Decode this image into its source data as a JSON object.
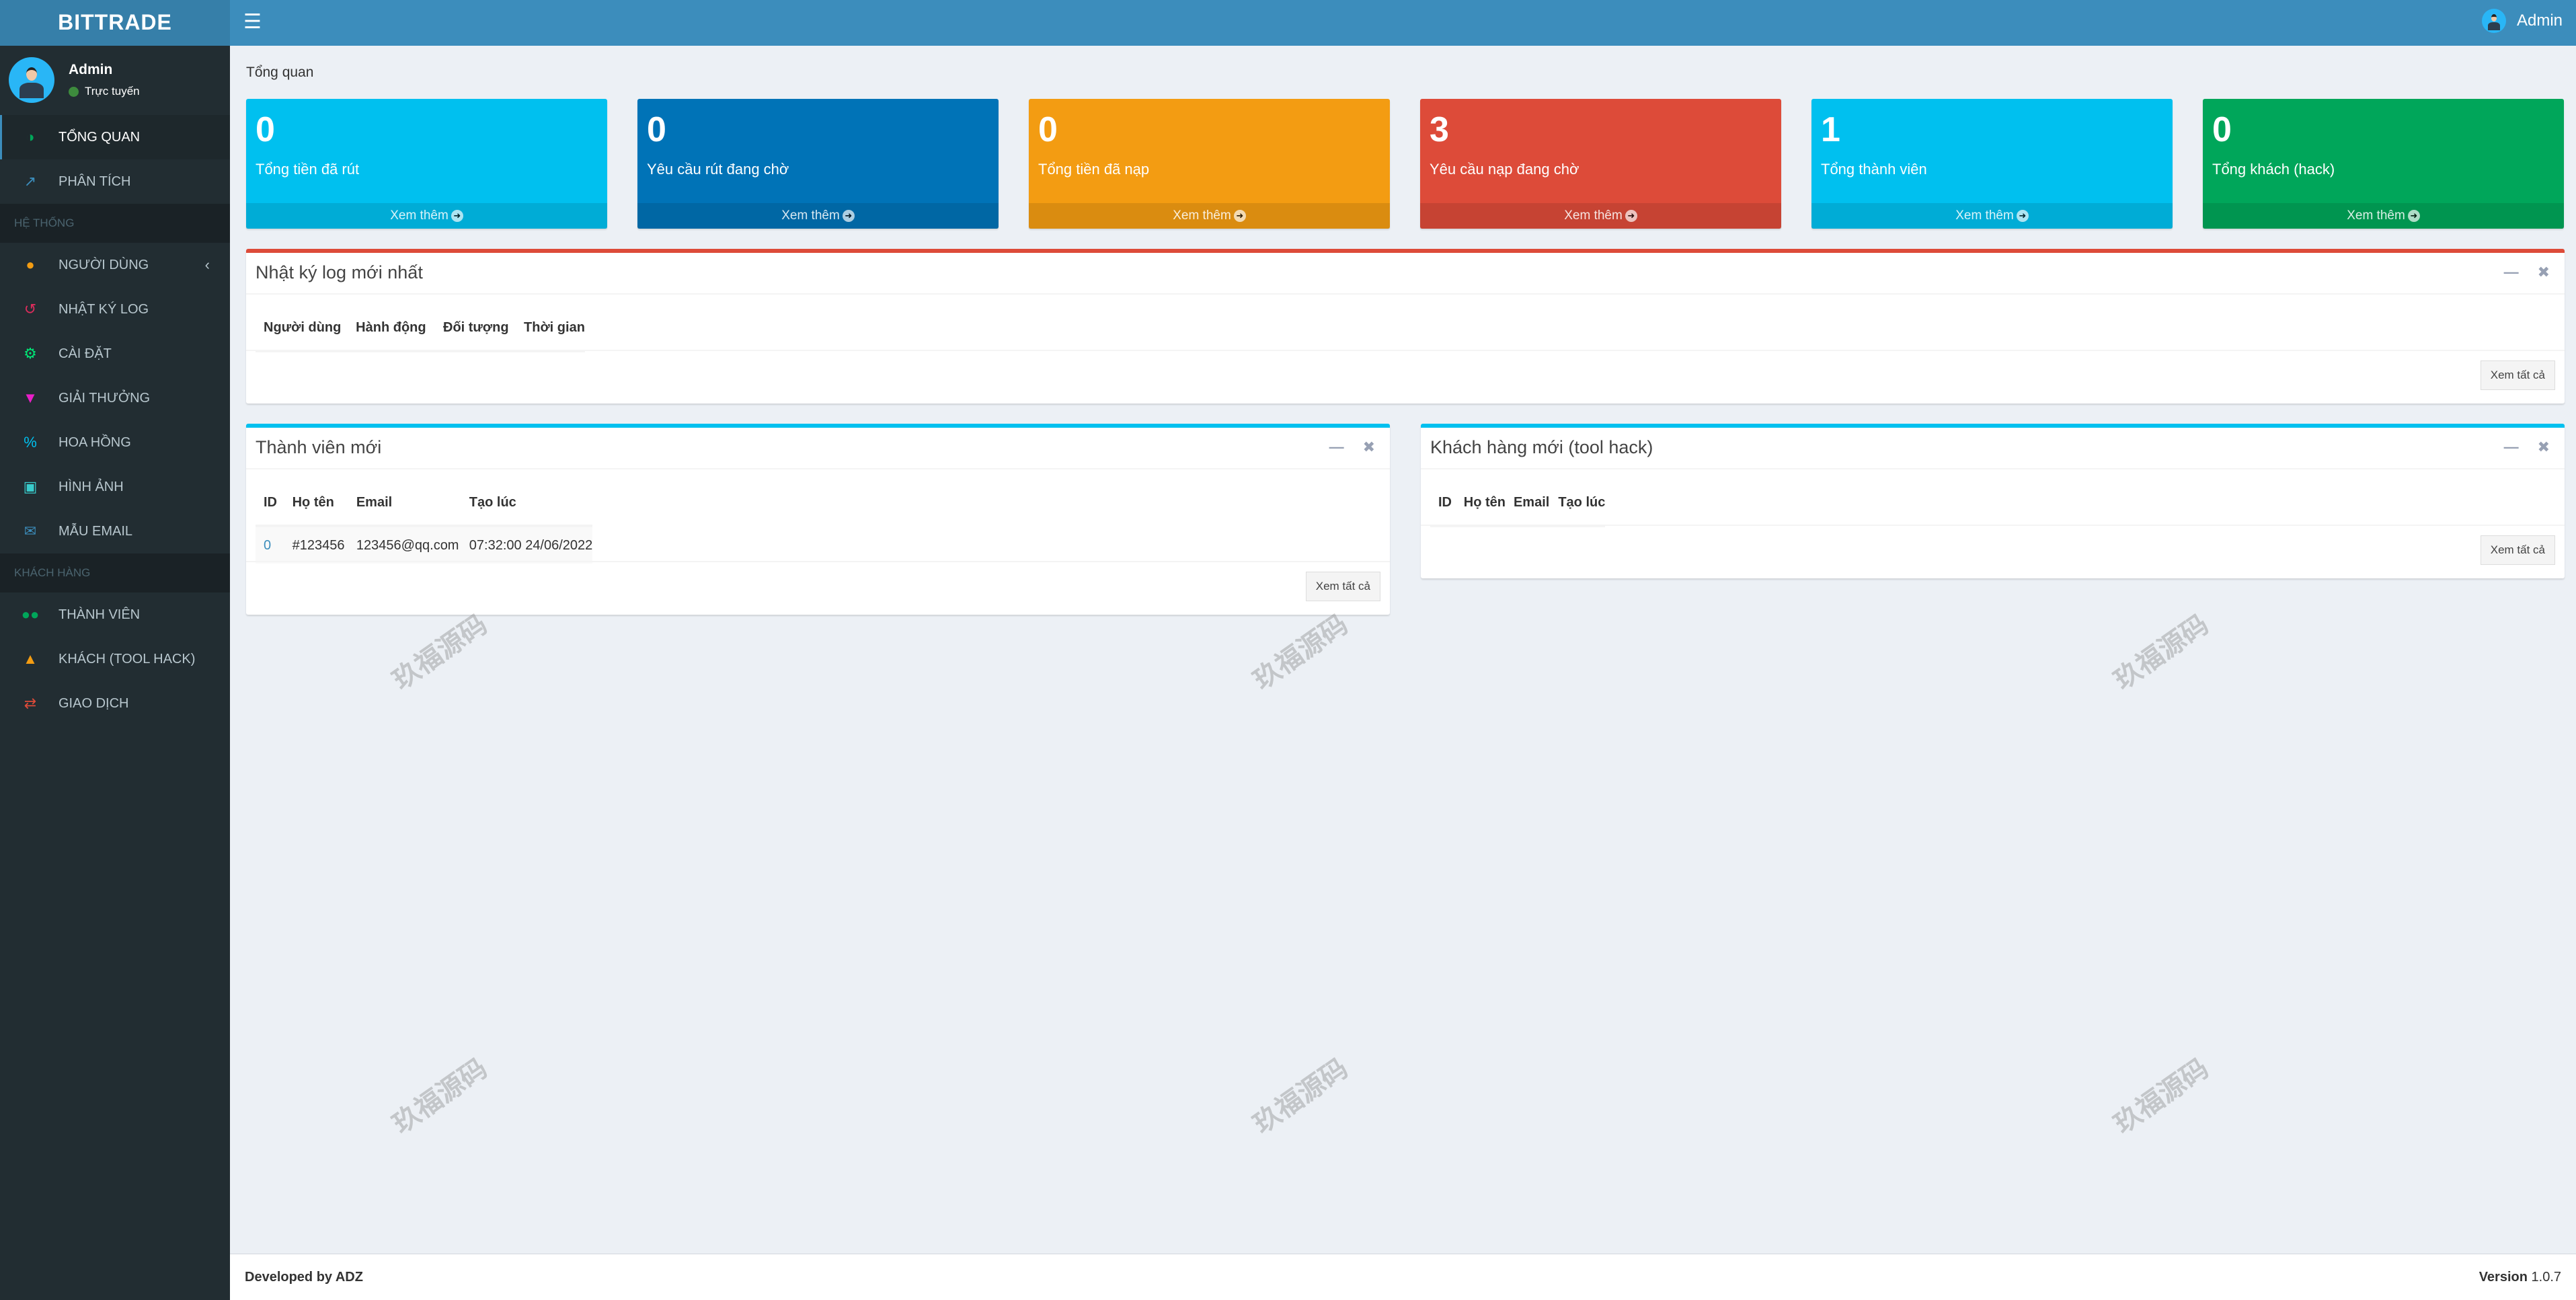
{
  "header": {
    "logo": "BITTRADE",
    "user": "Admin"
  },
  "sidebar": {
    "user": {
      "name": "Admin",
      "status": "Trực tuyến"
    },
    "items": [
      {
        "type": "item",
        "label": "TỔNG QUAN",
        "icon": "dashboard-icon",
        "color": "#00a65a",
        "active": true
      },
      {
        "type": "item",
        "label": "PHÂN TÍCH",
        "icon": "line-chart-icon",
        "color": "#3c8dbc"
      },
      {
        "type": "header",
        "label": "HỆ THỐNG"
      },
      {
        "type": "item",
        "label": "NGƯỜI DÙNG",
        "icon": "user-icon",
        "color": "#f39c12",
        "chevron": true
      },
      {
        "type": "item",
        "label": "NHẬT KÝ LOG",
        "icon": "history-icon",
        "color": "#dd2c5c"
      },
      {
        "type": "item",
        "label": "CÀI ĐẶT",
        "icon": "gear-icon",
        "color": "#00e676"
      },
      {
        "type": "item",
        "label": "GIẢI THƯỞNG",
        "icon": "trophy-icon",
        "color": "#e91ec8"
      },
      {
        "type": "item",
        "label": "HOA HỒNG",
        "icon": "percent-icon",
        "color": "#00c0ef"
      },
      {
        "type": "item",
        "label": "HÌNH ẢNH",
        "icon": "image-icon",
        "color": "#39cccc"
      },
      {
        "type": "item",
        "label": "MẪU EMAIL",
        "icon": "envelope-icon",
        "color": "#3c8dbc"
      },
      {
        "type": "header",
        "label": "KHÁCH HÀNG"
      },
      {
        "type": "item",
        "label": "THÀNH VIÊN",
        "icon": "users-icon",
        "color": "#00a65a"
      },
      {
        "type": "item",
        "label": "KHÁCH (TOOL HACK)",
        "icon": "user-secret-icon",
        "color": "#f39c12"
      },
      {
        "type": "item",
        "label": "GIAO DỊCH",
        "icon": "exchange-icon",
        "color": "#dd4b39"
      }
    ]
  },
  "breadcrumb": "Tổng quan",
  "cards": [
    {
      "value": "0",
      "label": "Tổng tiền đã rút",
      "more": "Xem thêm",
      "color": "#00c0ef"
    },
    {
      "value": "0",
      "label": "Yêu cầu rút đang chờ",
      "more": "Xem thêm",
      "color": "#0073b7"
    },
    {
      "value": "0",
      "label": "Tổng tiền đã nạp",
      "more": "Xem thêm",
      "color": "#f39c12"
    },
    {
      "value": "3",
      "label": "Yêu cầu nạp đang chờ",
      "more": "Xem thêm",
      "color": "#dd4b39"
    },
    {
      "value": "1",
      "label": "Tổng thành viên",
      "more": "Xem thêm",
      "color": "#00c0ef"
    },
    {
      "value": "0",
      "label": "Tổng khách (hack)",
      "more": "Xem thêm",
      "color": "#00a65a"
    }
  ],
  "log_box": {
    "title": "Nhật ký log mới nhất",
    "columns": [
      "Người dùng",
      "Hành động",
      "Đối tượng",
      "Thời gian"
    ],
    "view_all": "Xem tất cả"
  },
  "members_box": {
    "title": "Thành viên mới",
    "columns": [
      "ID",
      "Họ tên",
      "Email",
      "Tạo lúc"
    ],
    "rows": [
      [
        "0",
        "#123456",
        "123456@qq.com",
        "07:32:00 24/06/2022"
      ]
    ],
    "view_all": "Xem tất cả"
  },
  "hack_box": {
    "title": "Khách hàng mới (tool hack)",
    "columns": [
      "ID",
      "Họ tên",
      "Email",
      "Tạo lúc"
    ],
    "view_all": "Xem tất cả"
  },
  "footer": {
    "developed": "Developed by ADZ",
    "version_label": "Version",
    "version": "1.0.7"
  },
  "watermark": "玖福源码"
}
